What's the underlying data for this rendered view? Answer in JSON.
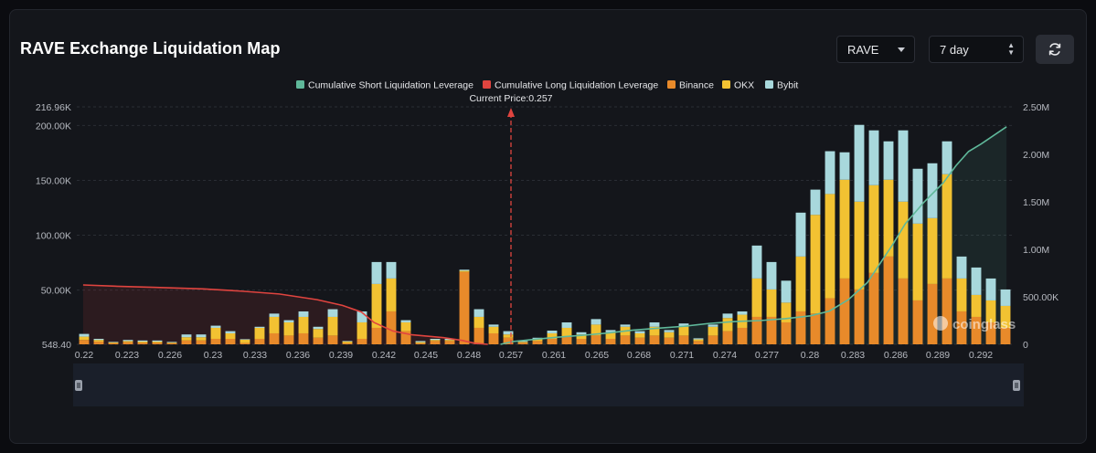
{
  "header": {
    "title": "RAVE Exchange Liquidation Map",
    "coin_select": "RAVE",
    "range_select": "7 day"
  },
  "icons": {
    "refresh": "refresh-icon",
    "watermark": "coinglass-logo"
  },
  "watermark": "coinglass",
  "colors": {
    "short_cum": "#5fb89a",
    "long_cum": "#e0443f",
    "binance": "#e88a2a",
    "okx": "#f2c232",
    "bybit": "#a8d8dc"
  },
  "chart_data": {
    "type": "bar",
    "legend": [
      "Cumulative Short Liquidation Leverage",
      "Cumulative Long Liquidation Leverage",
      "Binance",
      "OKX",
      "Bybit"
    ],
    "current_price_label": "Current Price:0.257",
    "current_price": 0.257,
    "x_tick_labels": [
      "0.22",
      "0.223",
      "0.226",
      "0.23",
      "0.233",
      "0.236",
      "0.239",
      "0.242",
      "0.245",
      "0.248",
      "0.257",
      "0.261",
      "0.265",
      "0.268",
      "0.271",
      "0.274",
      "0.277",
      "0.28",
      "0.283",
      "0.286",
      "0.289",
      "0.292"
    ],
    "y_left_tick_labels": [
      "216.96K",
      "200.00K",
      "150.00K",
      "100.00K",
      "50.00K",
      "548.40"
    ],
    "y_left_ticks": [
      216960,
      200000,
      150000,
      100000,
      50000,
      548.4
    ],
    "y_left_range": [
      548.4,
      216960
    ],
    "y_right_tick_labels": [
      "2.50M",
      "2.00M",
      "1.50M",
      "1.00M",
      "500.00K",
      "0"
    ],
    "y_right_ticks": [
      2500000,
      2000000,
      1500000,
      1000000,
      500000,
      0
    ],
    "y_right_range": [
      0,
      2500000
    ],
    "grid": true,
    "legend_position": "top-center",
    "series": [
      {
        "name": "Binance",
        "values": [
          4000,
          2500,
          1000,
          2000,
          1500,
          1500,
          1000,
          3500,
          3500,
          5000,
          5000,
          1200,
          5000,
          10000,
          8000,
          10000,
          6000,
          8000,
          1000,
          5000,
          15000,
          30000,
          12000,
          1000,
          3000,
          3000,
          66000,
          15000,
          10000,
          6000,
          1500,
          3000,
          5000,
          7000,
          5000,
          8000,
          5000,
          8000,
          6000,
          8000,
          6000,
          8000,
          3000,
          8000,
          12000,
          15000,
          25000,
          25000,
          20000,
          30000,
          28000,
          42000,
          60000,
          50000,
          65000,
          80000,
          60000,
          40000,
          55000,
          60000,
          30000,
          25000,
          20000,
          15000
        ]
      },
      {
        "name": "OKX",
        "values": [
          3000,
          1500,
          800,
          1000,
          1000,
          1000,
          600,
          3000,
          3000,
          10000,
          5000,
          3000,
          10000,
          15000,
          12000,
          15000,
          8000,
          17000,
          1500,
          15000,
          40000,
          30000,
          8000,
          1000,
          1000,
          1000,
          1000,
          10000,
          6000,
          3000,
          800,
          2000,
          5000,
          8000,
          4000,
          10000,
          6000,
          8000,
          4000,
          8000,
          5000,
          8000,
          1500,
          8000,
          12000,
          12000,
          35000,
          25000,
          18000,
          50000,
          90000,
          95000,
          90000,
          80000,
          80000,
          70000,
          70000,
          70000,
          60000,
          95000,
          30000,
          20000,
          20000,
          20000
        ]
      },
      {
        "name": "Bybit",
        "values": [
          2500,
          1000,
          500,
          1000,
          1000,
          1000,
          600,
          2500,
          2500,
          2000,
          2000,
          500,
          1000,
          3000,
          2000,
          5000,
          2000,
          7000,
          500,
          10000,
          20000,
          15000,
          2000,
          1000,
          1000,
          1000,
          1000,
          7000,
          2000,
          3000,
          700,
          1000,
          2500,
          5000,
          2000,
          5000,
          2000,
          2000,
          2000,
          4000,
          2000,
          3000,
          1000,
          2000,
          4000,
          3000,
          30000,
          25000,
          20000,
          40000,
          23000,
          39000,
          25000,
          70000,
          50000,
          35000,
          65000,
          50000,
          50000,
          30000,
          20000,
          25000,
          20000,
          15000
        ]
      }
    ],
    "cumulative_long_points": [
      [
        0.2205,
        625000
      ],
      [
        0.223,
        612000
      ],
      [
        0.226,
        600000
      ],
      [
        0.23,
        584000
      ],
      [
        0.233,
        560000
      ],
      [
        0.236,
        530000
      ],
      [
        0.239,
        470000
      ],
      [
        0.241,
        410000
      ],
      [
        0.2425,
        340000
      ],
      [
        0.2435,
        230000
      ],
      [
        0.245,
        140000
      ],
      [
        0.2465,
        100000
      ],
      [
        0.249,
        70000
      ],
      [
        0.2505,
        40000
      ],
      [
        0.2515,
        10000
      ],
      [
        0.2525,
        0
      ]
    ],
    "cumulative_short_points": [
      [
        0.2535,
        0
      ],
      [
        0.2545,
        30000
      ],
      [
        0.256,
        50000
      ],
      [
        0.258,
        75000
      ],
      [
        0.26,
        95000
      ],
      [
        0.262,
        120000
      ],
      [
        0.264,
        150000
      ],
      [
        0.266,
        170000
      ],
      [
        0.268,
        190000
      ],
      [
        0.27,
        220000
      ],
      [
        0.272,
        240000
      ],
      [
        0.274,
        250000
      ],
      [
        0.276,
        270000
      ],
      [
        0.278,
        300000
      ],
      [
        0.2795,
        350000
      ],
      [
        0.281,
        470000
      ],
      [
        0.2825,
        650000
      ],
      [
        0.2835,
        850000
      ],
      [
        0.2845,
        1050000
      ],
      [
        0.2855,
        1270000
      ],
      [
        0.287,
        1500000
      ],
      [
        0.2885,
        1700000
      ],
      [
        0.2895,
        1880000
      ],
      [
        0.2905,
        2030000
      ],
      [
        0.2915,
        2110000
      ],
      [
        0.2925,
        2200000
      ],
      [
        0.2935,
        2290000
      ]
    ]
  }
}
